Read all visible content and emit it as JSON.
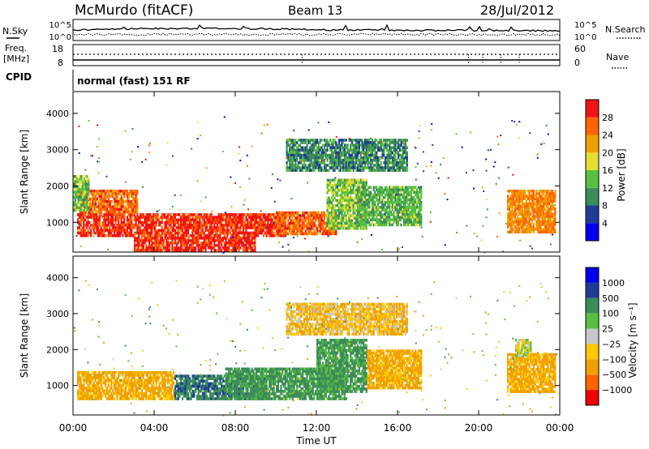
{
  "header": {
    "station": "McMurdo (fitACF)",
    "beam": "Beam 13",
    "date": "28/Jul/2012"
  },
  "top_panels": {
    "nsky_label": "N.Sky",
    "nsearch_label": "N.Search",
    "noise_ticks": [
      "10^5",
      "10^0"
    ],
    "freq_label": "Freq.",
    "freq_unit": "[MHz]",
    "freq_ticks": [
      "18",
      "8"
    ],
    "nave_label": "Nave",
    "nave_ticks": [
      "60",
      "0"
    ],
    "cpid_label": "CPID",
    "cpid_value": "normal (fast) 151 RF"
  },
  "colors": {
    "power": [
      "#0000ee",
      "#1e3c96",
      "#3c8c5a",
      "#58c040",
      "#e6dc32",
      "#f0a000",
      "#ff6400",
      "#f01414"
    ],
    "velocity": [
      "#ee0000",
      "#ff6400",
      "#f0a000",
      "#ffc800",
      "#c8c8c8",
      "#58c040",
      "#3c8c5a",
      "#1e3c96",
      "#0000ee"
    ]
  },
  "chart_data": [
    {
      "type": "heatmap",
      "name": "power",
      "xlabel": "",
      "ylabel": "Slant Range [km]",
      "xlim": [
        0,
        24
      ],
      "ylim": [
        180,
        4600
      ],
      "yticks": [
        1000,
        2000,
        3000,
        4000
      ],
      "colorbar_label": "Power [dB]",
      "colorbar_ticks": [
        4,
        8,
        12,
        16,
        20,
        24,
        28
      ],
      "clim": [
        0,
        32
      ],
      "regions": [
        {
          "x": [
            0.2,
            10.5
          ],
          "y": [
            600,
            1250
          ],
          "level": 29
        },
        {
          "x": [
            0.3,
            3.2
          ],
          "y": [
            1250,
            1900
          ],
          "level": 26
        },
        {
          "x": [
            3.0,
            9.0
          ],
          "y": [
            200,
            600
          ],
          "level": 30
        },
        {
          "x": [
            10.0,
            13.0
          ],
          "y": [
            650,
            1300
          ],
          "level": 26
        },
        {
          "x": [
            12.5,
            14.5
          ],
          "y": [
            800,
            2200
          ],
          "level": 15
        },
        {
          "x": [
            14.0,
            17.2
          ],
          "y": [
            900,
            2000
          ],
          "level": 13
        },
        {
          "x": [
            10.5,
            16.5
          ],
          "y": [
            2400,
            3300
          ],
          "level": 10
        },
        {
          "x": [
            21.4,
            23.8
          ],
          "y": [
            700,
            1900
          ],
          "level": 24
        },
        {
          "x": [
            0.0,
            0.8
          ],
          "y": [
            1300,
            2300
          ],
          "level": 14
        }
      ]
    },
    {
      "type": "heatmap",
      "name": "velocity",
      "xlabel": "Time UT",
      "ylabel": "Slant Range [km]",
      "xlim": [
        0,
        24
      ],
      "ylim": [
        180,
        4600
      ],
      "xticks": [
        "00:00",
        "04:00",
        "08:00",
        "12:00",
        "16:00",
        "20:00",
        "00:00"
      ],
      "yticks": [
        1000,
        2000,
        3000,
        4000
      ],
      "colorbar_label": "Velocity [m s⁻¹]",
      "colorbar_ticks": [
        "1000",
        "500",
        "100",
        "25",
        "−25",
        "−100",
        "−500",
        "−1000"
      ],
      "regions": [
        {
          "x": [
            0.2,
            5.0
          ],
          "y": [
            600,
            1400
          ],
          "v": -150
        },
        {
          "x": [
            5.0,
            9.5
          ],
          "y": [
            600,
            1300
          ],
          "v": 400
        },
        {
          "x": [
            7.5,
            13.5
          ],
          "y": [
            600,
            1500
          ],
          "v": 150
        },
        {
          "x": [
            12.0,
            14.5
          ],
          "y": [
            800,
            2300
          ],
          "v": 150
        },
        {
          "x": [
            14.5,
            17.2
          ],
          "y": [
            900,
            2000
          ],
          "v": -150
        },
        {
          "x": [
            10.5,
            16.5
          ],
          "y": [
            2400,
            3300
          ],
          "v": -80
        },
        {
          "x": [
            21.4,
            23.8
          ],
          "y": [
            800,
            1900
          ],
          "v": -150
        },
        {
          "x": [
            21.8,
            22.6
          ],
          "y": [
            1800,
            2300
          ],
          "v": 0
        }
      ]
    }
  ]
}
